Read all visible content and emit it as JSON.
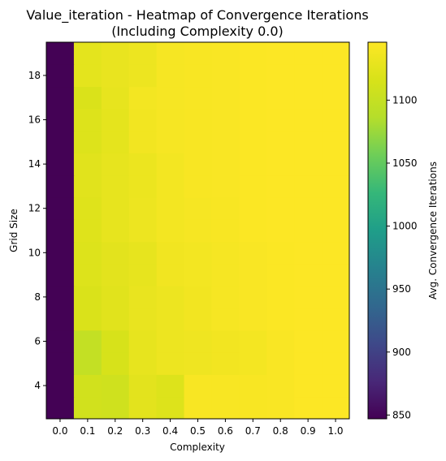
{
  "chart_data": {
    "type": "heatmap",
    "title_line1": "Value_iteration - Heatmap of Convergence Iterations",
    "title_line2": "(Including Complexity 0.0)",
    "xlabel": "Complexity",
    "ylabel": "Grid Size",
    "x_categories": [
      "0.0",
      "0.1",
      "0.2",
      "0.3",
      "0.4",
      "0.5",
      "0.6",
      "0.7",
      "0.8",
      "0.9",
      "1.0"
    ],
    "y_categories": [
      3,
      4,
      5,
      6,
      7,
      8,
      9,
      10,
      11,
      12,
      13,
      14,
      15,
      16,
      17,
      18,
      19
    ],
    "y_tick_labels": [
      "4",
      "6",
      "8",
      "10",
      "12",
      "14",
      "16",
      "18"
    ],
    "y_tick_values": [
      4,
      6,
      8,
      10,
      12,
      14,
      16,
      18
    ],
    "values": [
      [
        848,
        1110,
        1108,
        1125,
        1120,
        1142,
        1142,
        1142,
        1143,
        1145,
        1145
      ],
      [
        848,
        1110,
        1108,
        1125,
        1120,
        1142,
        1142,
        1142,
        1143,
        1145,
        1145
      ],
      [
        848,
        1098,
        1115,
        1128,
        1133,
        1135,
        1137,
        1139,
        1143,
        1145,
        1145
      ],
      [
        848,
        1098,
        1115,
        1128,
        1133,
        1135,
        1137,
        1139,
        1143,
        1145,
        1145
      ],
      [
        848,
        1118,
        1123,
        1130,
        1133,
        1137,
        1140,
        1143,
        1144,
        1145,
        1145
      ],
      [
        848,
        1118,
        1123,
        1130,
        1133,
        1137,
        1140,
        1143,
        1144,
        1145,
        1145
      ],
      [
        848,
        1120,
        1125,
        1128,
        1136,
        1138,
        1140,
        1143,
        1144,
        1145,
        1145
      ],
      [
        848,
        1120,
        1125,
        1128,
        1136,
        1138,
        1140,
        1143,
        1144,
        1145,
        1145
      ],
      [
        848,
        1122,
        1128,
        1133,
        1138,
        1140,
        1142,
        1144,
        1145,
        1145,
        1145
      ],
      [
        848,
        1122,
        1128,
        1133,
        1138,
        1140,
        1142,
        1144,
        1145,
        1145,
        1145
      ],
      [
        848,
        1123,
        1128,
        1132,
        1138,
        1142,
        1143,
        1144,
        1145,
        1145,
        1145
      ],
      [
        848,
        1123,
        1128,
        1132,
        1138,
        1142,
        1143,
        1144,
        1145,
        1145,
        1145
      ],
      [
        848,
        1120,
        1127,
        1137,
        1140,
        1142,
        1143,
        1144,
        1145,
        1145,
        1145
      ],
      [
        848,
        1120,
        1127,
        1137,
        1140,
        1142,
        1143,
        1144,
        1145,
        1145,
        1145
      ],
      [
        848,
        1118,
        1128,
        1138,
        1140,
        1142,
        1143,
        1144,
        1145,
        1145,
        1145
      ],
      [
        848,
        1126,
        1130,
        1133,
        1140,
        1142,
        1143,
        1144,
        1145,
        1145,
        1145
      ],
      [
        848,
        1126,
        1130,
        1133,
        1140,
        1142,
        1143,
        1144,
        1145,
        1145,
        1145
      ]
    ],
    "colormap": "viridis",
    "colorbar": {
      "label": "Avg. Convergence Iterations",
      "vmin": 847,
      "vmax": 1146,
      "ticks": [
        850,
        900,
        950,
        1000,
        1050,
        1100
      ],
      "tick_labels": [
        "850",
        "900",
        "950",
        "1000",
        "1050",
        "1100"
      ]
    }
  }
}
